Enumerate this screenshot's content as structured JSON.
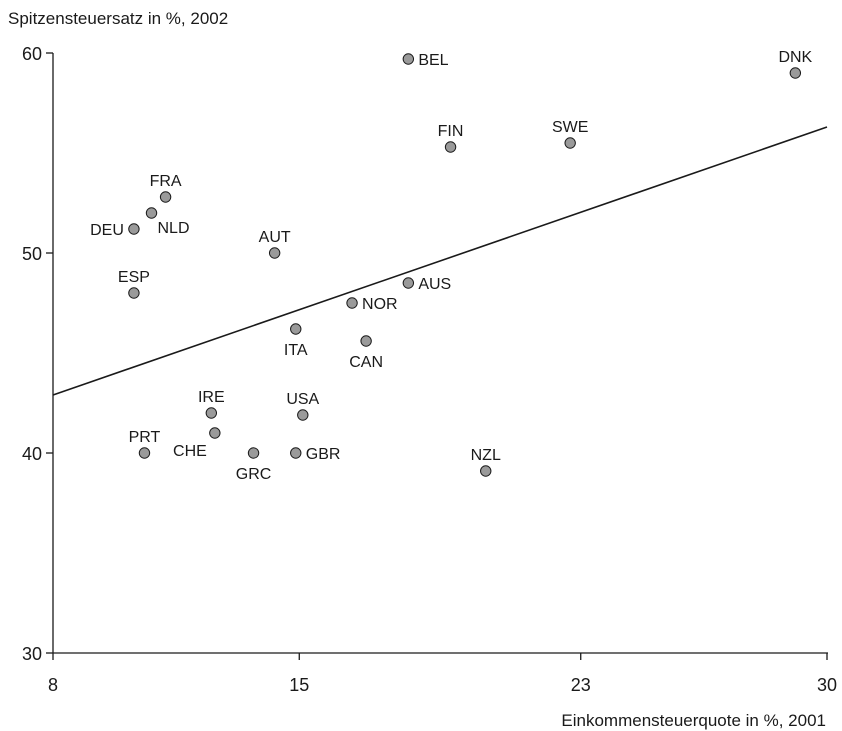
{
  "chart_data": {
    "type": "scatter",
    "ylabel": "Spitzensteuersatz in %, 2002",
    "xlabel": "Einkommensteuerquote in %, 2001",
    "xlim": [
      8,
      30
    ],
    "ylim": [
      30,
      60
    ],
    "x_ticks": [
      8,
      15,
      23,
      30
    ],
    "y_ticks": [
      30,
      40,
      50,
      60
    ],
    "points": [
      {
        "label": "BEL",
        "x": 18.1,
        "y": 59.7,
        "label_pos": "right"
      },
      {
        "label": "DNK",
        "x": 29.1,
        "y": 59.0,
        "label_pos": "above"
      },
      {
        "label": "FIN",
        "x": 19.3,
        "y": 55.3,
        "label_pos": "above"
      },
      {
        "label": "SWE",
        "x": 22.7,
        "y": 55.5,
        "label_pos": "above"
      },
      {
        "label": "FRA",
        "x": 11.2,
        "y": 52.8,
        "label_pos": "above"
      },
      {
        "label": "NLD",
        "x": 10.8,
        "y": 52.0,
        "label_pos": "below-right"
      },
      {
        "label": "DEU",
        "x": 10.3,
        "y": 51.2,
        "label_pos": "left"
      },
      {
        "label": "AUT",
        "x": 14.3,
        "y": 50.0,
        "label_pos": "above"
      },
      {
        "label": "ESP",
        "x": 10.3,
        "y": 48.0,
        "label_pos": "above"
      },
      {
        "label": "AUS",
        "x": 18.1,
        "y": 48.5,
        "label_pos": "right"
      },
      {
        "label": "NOR",
        "x": 16.5,
        "y": 47.5,
        "label_pos": "right"
      },
      {
        "label": "ITA",
        "x": 14.9,
        "y": 46.2,
        "label_pos": "below"
      },
      {
        "label": "CAN",
        "x": 16.9,
        "y": 45.6,
        "label_pos": "below"
      },
      {
        "label": "IRE",
        "x": 12.5,
        "y": 42.0,
        "label_pos": "above"
      },
      {
        "label": "USA",
        "x": 15.1,
        "y": 41.9,
        "label_pos": "above"
      },
      {
        "label": "CHE",
        "x": 12.6,
        "y": 41.0,
        "label_pos": "below-left"
      },
      {
        "label": "PRT",
        "x": 10.6,
        "y": 40.0,
        "label_pos": "above"
      },
      {
        "label": "GRC",
        "x": 13.7,
        "y": 40.0,
        "label_pos": "below"
      },
      {
        "label": "GBR",
        "x": 14.9,
        "y": 40.0,
        "label_pos": "right"
      },
      {
        "label": "NZL",
        "x": 20.3,
        "y": 39.1,
        "label_pos": "above"
      }
    ],
    "trendline": {
      "x": [
        8,
        30
      ],
      "y": [
        42.9,
        56.3
      ]
    },
    "grid": false,
    "legend": "none"
  }
}
